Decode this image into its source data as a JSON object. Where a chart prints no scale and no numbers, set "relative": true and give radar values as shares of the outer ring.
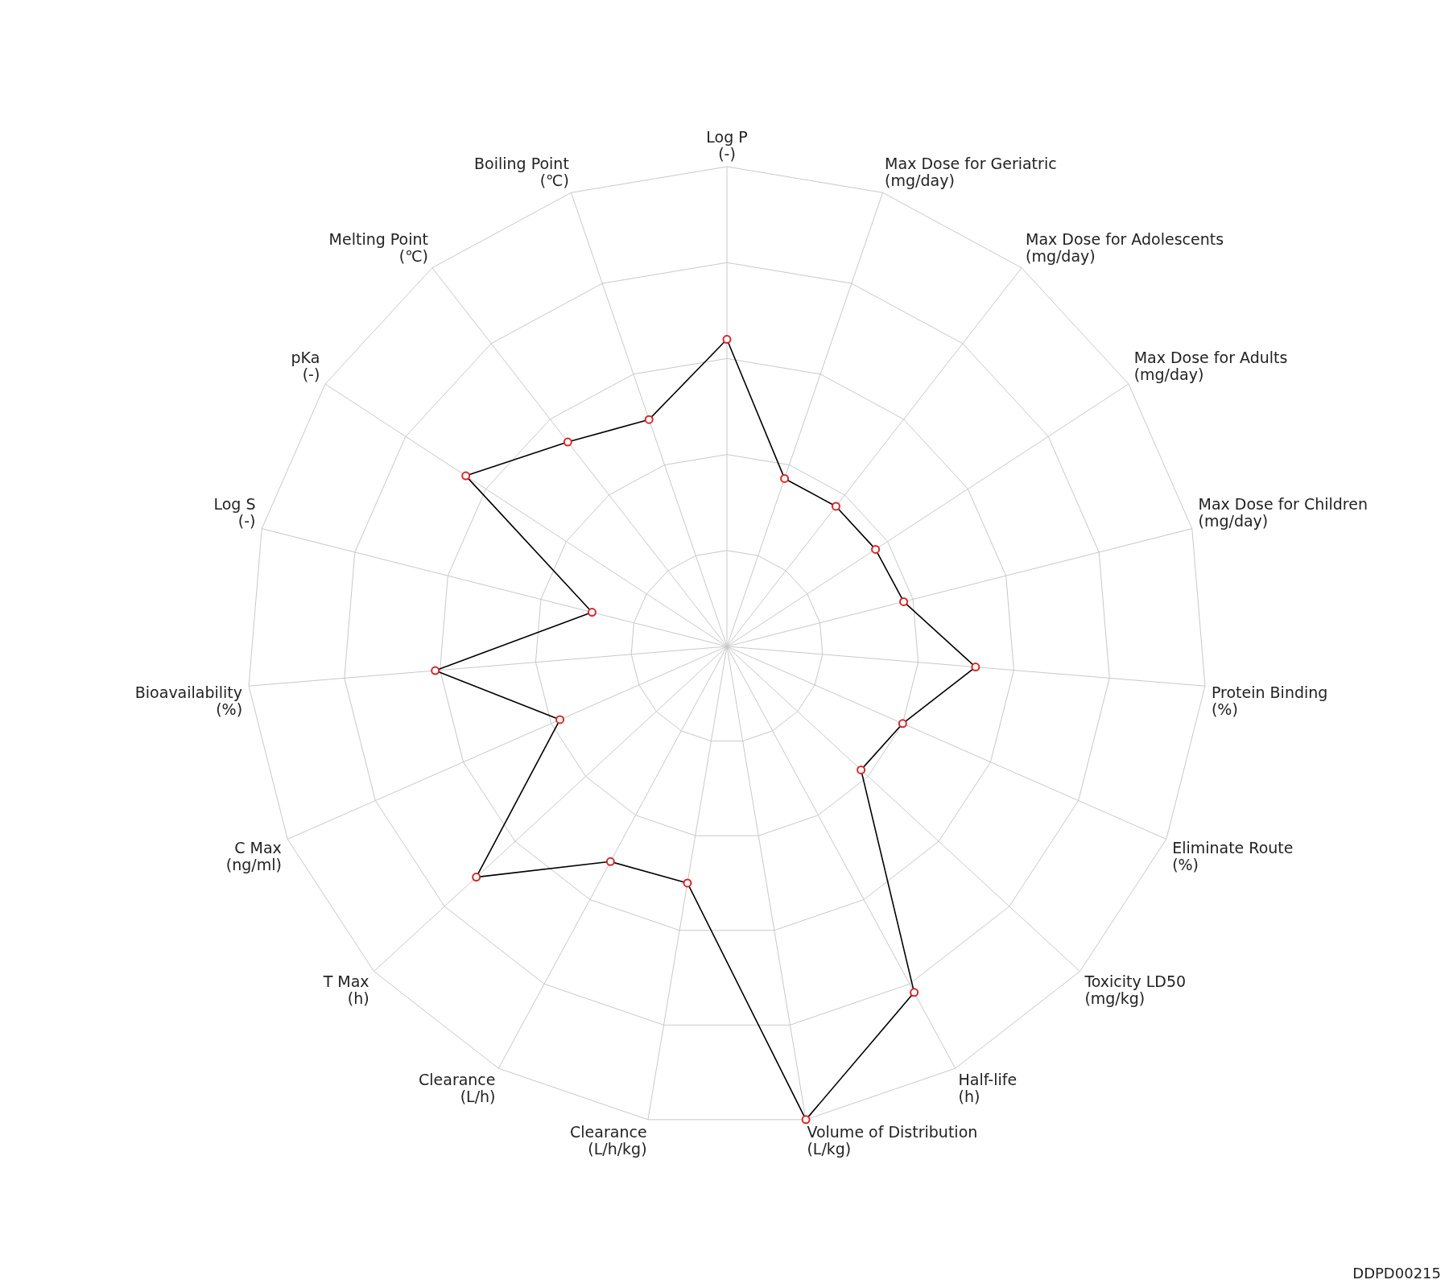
{
  "chart_data": {
    "type": "radar",
    "relative": true,
    "grid": true,
    "marker": "circle",
    "line_style": "solid",
    "categories": [
      "Log P\n(-)",
      "Max Dose for Geriatric\n(mg/day)",
      "Max Dose for Adolescents\n(mg/day)",
      "Max Dose for Adults\n(mg/day)",
      "Max Dose for Children\n(mg/day)",
      "Protein Binding\n(%)",
      "Eliminate Route\n(%)",
      "Toxicity LD50\n(mg/kg)",
      "Half-life\n(h)",
      "Volume of Distribution\n(L/kg)",
      "Clearance\n(L/h/kg)",
      "Clearance\n(L/h)",
      "T Max\n(h)",
      "C Max\n(ng/ml)",
      "Bioavailability\n(%)",
      "Log S\n(-)",
      "pKa\n(-)",
      "Melting Point\n(℃)",
      "Boiling Point\n(℃)"
    ],
    "series": [
      {
        "color": "#000000",
        "values": [
          0.64,
          0.37,
          0.37,
          0.37,
          0.38,
          0.52,
          0.4,
          0.38,
          0.82,
          1.0,
          0.5,
          0.51,
          0.71,
          0.38,
          0.61,
          0.29,
          0.65,
          0.54,
          0.5
        ]
      }
    ],
    "annotations": [
      "DDPD00215"
    ]
  }
}
